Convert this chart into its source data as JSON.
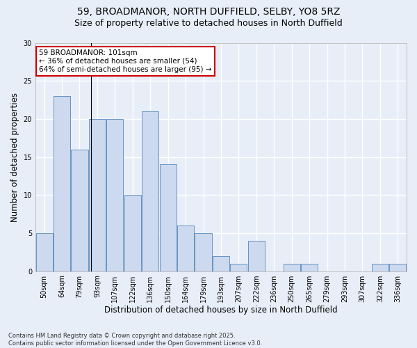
{
  "title1": "59, BROADMANOR, NORTH DUFFIELD, SELBY, YO8 5RZ",
  "title2": "Size of property relative to detached houses in North Duffield",
  "xlabel": "Distribution of detached houses by size in North Duffield",
  "ylabel": "Number of detached properties",
  "categories": [
    "50sqm",
    "64sqm",
    "79sqm",
    "93sqm",
    "107sqm",
    "122sqm",
    "136sqm",
    "150sqm",
    "164sqm",
    "179sqm",
    "193sqm",
    "207sqm",
    "222sqm",
    "236sqm",
    "250sqm",
    "265sqm",
    "279sqm",
    "293sqm",
    "307sqm",
    "322sqm",
    "336sqm"
  ],
  "values": [
    5,
    23,
    16,
    20,
    20,
    10,
    21,
    14,
    6,
    5,
    2,
    1,
    4,
    0,
    1,
    1,
    0,
    0,
    0,
    1,
    1
  ],
  "bar_color": "#ccd9ee",
  "bar_edge_color": "#5588bb",
  "background_color": "#e8eef8",
  "grid_color": "#ffffff",
  "annotation_line1": "59 BROADMANOR: 101sqm",
  "annotation_line2": "← 36% of detached houses are smaller (54)",
  "annotation_line3": "64% of semi-detached houses are larger (95) →",
  "annotation_box_color": "#ffffff",
  "annotation_box_edge_color": "#cc0000",
  "property_line_x": 2.65,
  "ylim": [
    0,
    30
  ],
  "yticks": [
    0,
    5,
    10,
    15,
    20,
    25,
    30
  ],
  "footnote": "Contains HM Land Registry data © Crown copyright and database right 2025.\nContains public sector information licensed under the Open Government Licence v3.0.",
  "title_fontsize": 10,
  "subtitle_fontsize": 9,
  "tick_fontsize": 7,
  "ylabel_fontsize": 8.5,
  "xlabel_fontsize": 8.5,
  "annotation_fontsize": 7.5,
  "footnote_fontsize": 6
}
